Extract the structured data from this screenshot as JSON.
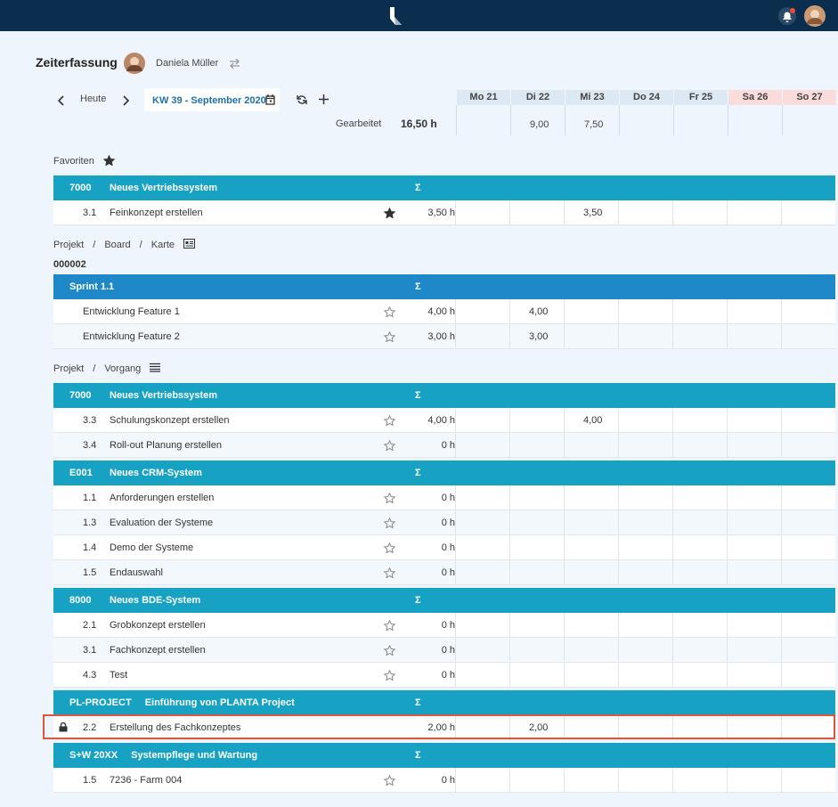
{
  "header": {
    "title": "Zeiterfassung",
    "user": "Daniela Müller"
  },
  "toolbar": {
    "today": "Heute",
    "week": "KW 39 - September 2020"
  },
  "days": [
    "Mo 21",
    "Di 22",
    "Mi 23",
    "Do 24",
    "Fr 25",
    "Sa 26",
    "So 27"
  ],
  "worked": {
    "label": "Gearbeitet",
    "total": "16,50 h",
    "days": [
      null,
      "9,00",
      "7,50",
      null,
      null,
      null,
      null
    ]
  },
  "sum_symbol": "Σ",
  "separator": "/",
  "sections": [
    {
      "title": "Favoriten",
      "icon": "star",
      "groups": [
        {
          "code": "7000",
          "name": "Neues Vertriebssystem",
          "color": "#17a2c4",
          "rows": [
            {
              "number": "3.1",
              "name": "Feinkonzept erstellen",
              "star": "filled",
              "total": "3,50 h",
              "days": [
                null,
                null,
                "3,50",
                null,
                null,
                null,
                null
              ]
            }
          ]
        }
      ]
    },
    {
      "breadcrumb": [
        "Projekt",
        "Board",
        "Karte"
      ],
      "icon": "card",
      "code": "000002",
      "groups": [
        {
          "code": "Sprint 1.1",
          "color": "#1f88c9",
          "rows": [
            {
              "name": "Entwicklung Feature 1",
              "star": "outline",
              "total": "4,00 h",
              "days": [
                null,
                "4,00",
                null,
                null,
                null,
                null,
                null
              ]
            },
            {
              "name": "Entwicklung Feature 2",
              "star": "outline",
              "total": "3,00 h",
              "days": [
                null,
                "3,00",
                null,
                null,
                null,
                null,
                null
              ]
            }
          ]
        }
      ]
    },
    {
      "breadcrumb": [
        "Projekt",
        "Vorgang"
      ],
      "icon": "list",
      "groups": [
        {
          "code": "7000",
          "name": "Neues Vertriebssystem",
          "color": "#17a2c4",
          "rows": [
            {
              "number": "3.3",
              "name": "Schulungskonzept erstellen",
              "star": "outline",
              "total": "4,00 h",
              "days": [
                null,
                null,
                "4,00",
                null,
                null,
                null,
                null
              ]
            },
            {
              "number": "3.4",
              "name": "Roll-out Planung erstellen",
              "star": "outline",
              "total": "0 h",
              "days": [
                null,
                null,
                null,
                null,
                null,
                null,
                null
              ]
            }
          ]
        },
        {
          "code": "E001",
          "name": "Neues CRM-System",
          "color": "#17a2c4",
          "rows": [
            {
              "number": "1.1",
              "name": "Anforderungen erstellen",
              "star": "outline",
              "total": "0 h",
              "days": [
                null,
                null,
                null,
                null,
                null,
                null,
                null
              ]
            },
            {
              "number": "1.3",
              "name": "Evaluation der Systeme",
              "star": "outline",
              "total": "0 h",
              "days": [
                null,
                null,
                null,
                null,
                null,
                null,
                null
              ]
            },
            {
              "number": "1.4",
              "name": "Demo der Systeme",
              "star": "outline",
              "total": "0 h",
              "days": [
                null,
                null,
                null,
                null,
                null,
                null,
                null
              ]
            },
            {
              "number": "1.5",
              "name": "Endauswahl",
              "star": "outline",
              "total": "0 h",
              "days": [
                null,
                null,
                null,
                null,
                null,
                null,
                null
              ]
            }
          ]
        },
        {
          "code": "8000",
          "name": "Neues BDE-System",
          "color": "#17a2c4",
          "rows": [
            {
              "number": "2.1",
              "name": "Grobkonzept erstellen",
              "star": "outline",
              "total": "0 h",
              "days": [
                null,
                null,
                null,
                null,
                null,
                null,
                null
              ]
            },
            {
              "number": "3.1",
              "name": "Fachkonzept erstellen",
              "star": "outline",
              "total": "0 h",
              "days": [
                null,
                null,
                null,
                null,
                null,
                null,
                null
              ]
            },
            {
              "number": "4.3",
              "name": "Test",
              "star": "outline",
              "total": "0 h",
              "days": [
                null,
                null,
                null,
                null,
                null,
                null,
                null
              ]
            }
          ]
        },
        {
          "code": "PL-PROJECT",
          "name": "Einführung von PLANTA Project",
          "color": "#17a2c4",
          "rows": [
            {
              "number": "2.2",
              "name": "Erstellung des Fachkonzeptes",
              "locked": true,
              "selected": true,
              "total": "2,00 h",
              "days": [
                null,
                "2,00",
                null,
                null,
                null,
                null,
                null
              ]
            }
          ]
        },
        {
          "code": "S+W 20XX",
          "name": "Systempflege und Wartung",
          "color": "#17a2c4",
          "rows": [
            {
              "number": "1.5",
              "name": "7236 - Farm 004",
              "star": "outline",
              "total": "0 h",
              "days": [
                null,
                null,
                null,
                null,
                null,
                null,
                null
              ]
            }
          ]
        }
      ]
    }
  ]
}
